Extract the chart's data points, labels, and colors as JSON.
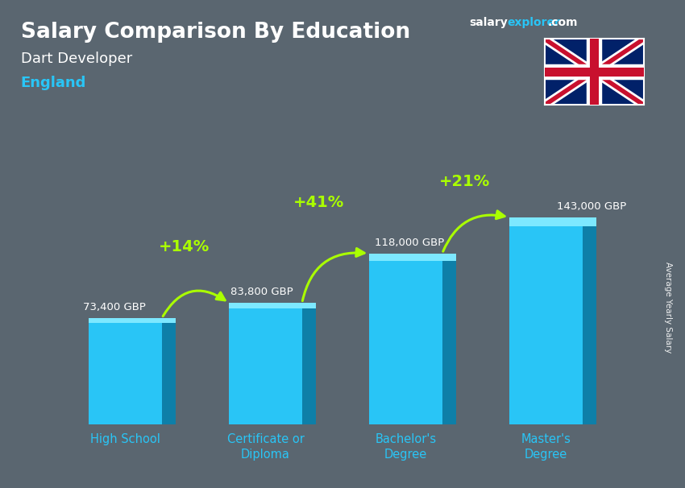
{
  "title_main": "Salary Comparison By Education",
  "subtitle_job": "Dart Developer",
  "subtitle_location": "England",
  "categories": [
    "High School",
    "Certificate or\nDiploma",
    "Bachelor's\nDegree",
    "Master's\nDegree"
  ],
  "values": [
    73400,
    83800,
    118000,
    143000
  ],
  "value_labels": [
    "73,400 GBP",
    "83,800 GBP",
    "118,000 GBP",
    "143,000 GBP"
  ],
  "pct_changes": [
    "+14%",
    "+41%",
    "+21%"
  ],
  "bar_color_main": "#29c5f6",
  "bar_color_dark": "#0e7fa8",
  "bar_color_light": "#7de8ff",
  "bg_color": "#5a6670",
  "text_color_white": "#ffffff",
  "text_color_cyan": "#29c5f6",
  "text_color_green": "#aaff00",
  "ylabel": "Average Yearly Salary",
  "ylim_max": 175000,
  "bar_width": 0.52
}
